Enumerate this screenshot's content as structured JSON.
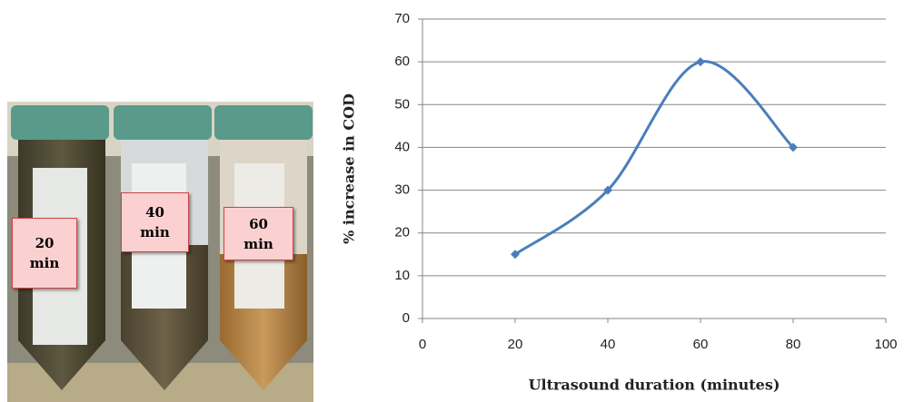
{
  "photo": {
    "labels": [
      "20 min",
      "40 min",
      "60 min"
    ]
  },
  "chart_data": {
    "type": "line",
    "x_label": "Ultrasound duration (minutes)",
    "y_label": "% increase in COD",
    "x": [
      20,
      40,
      60,
      80
    ],
    "series": [
      {
        "name": "% increase in COD",
        "color": "#4a7ebb",
        "values": [
          15,
          30,
          60,
          40
        ]
      }
    ],
    "xlim": [
      0,
      100
    ],
    "xticks": [
      0,
      20,
      40,
      60,
      80,
      100
    ],
    "ylim": [
      0,
      70
    ],
    "yticks": [
      0,
      10,
      20,
      30,
      40,
      50,
      60,
      70
    ],
    "grid": true,
    "smooth": true
  }
}
